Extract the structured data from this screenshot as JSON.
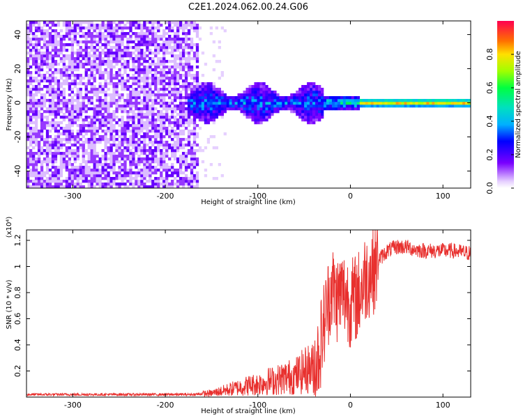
{
  "title": "C2E1.2024.062.00.24.G06",
  "colorbar": {
    "label": "Normalized spectral amplitude",
    "range": [
      0,
      1
    ],
    "ticks": [
      0.0,
      0.2,
      0.4,
      0.6,
      0.8
    ]
  },
  "colors": {
    "snr_line": "#e8302e",
    "low_amp": "#6a00f0",
    "mid_amp": "#00d0e0"
  },
  "chart_data": [
    {
      "type": "heatmap",
      "xlabel": "Height of straight line (km)",
      "ylabel": "Frequency (Hz)",
      "xlim": [
        -350,
        130
      ],
      "ylim": [
        -50,
        48
      ],
      "xticks": [
        -300,
        -200,
        -100,
        0,
        100
      ],
      "yticks": [
        -40,
        -20,
        0,
        20,
        40
      ],
      "regions": [
        {
          "x": [
            -350,
            -165
          ],
          "freq": [
            -50,
            48
          ],
          "amplitude": 0.1,
          "note": "broadband noise"
        },
        {
          "x": [
            -175,
            -30
          ],
          "freq": [
            -12,
            10
          ],
          "amplitude": 0.35
        },
        {
          "x": [
            -30,
            10
          ],
          "freq": [
            -5,
            5
          ],
          "amplitude": 0.55
        },
        {
          "x": [
            10,
            130
          ],
          "freq": [
            -2,
            2
          ],
          "amplitude": 0.9
        }
      ]
    },
    {
      "type": "line",
      "xlabel": "Height of straight line (km)",
      "ylabel": "SNR (10 * v/v)",
      "yscale_note": "(x10⁴)",
      "xlim": [
        -350,
        130
      ],
      "ylim": [
        0,
        1.28
      ],
      "xticks": [
        -300,
        -200,
        -100,
        0,
        100
      ],
      "yticks": [
        0.2,
        0.4,
        0.6,
        0.8,
        1.0,
        1.2
      ],
      "series": [
        {
          "x": [
            -350,
            -300,
            -250,
            -200,
            -170,
            -150,
            -130,
            -110,
            -100,
            -90,
            -80,
            -70,
            -60,
            -50,
            -45,
            -40,
            -35,
            -30,
            -25,
            -20,
            -15,
            -10,
            -5,
            0,
            5,
            10,
            15,
            20,
            25,
            30,
            40,
            50,
            60,
            70,
            80,
            90,
            100,
            110,
            120,
            130
          ],
          "values": [
            0.02,
            0.02,
            0.02,
            0.02,
            0.02,
            0.03,
            0.06,
            0.09,
            0.1,
            0.12,
            0.13,
            0.15,
            0.16,
            0.2,
            0.22,
            0.22,
            0.3,
            0.5,
            0.7,
            0.85,
            0.75,
            0.8,
            0.78,
            0.72,
            0.75,
            0.8,
            0.9,
            0.95,
            0.98,
            1.05,
            1.12,
            1.15,
            1.15,
            1.13,
            1.12,
            1.12,
            1.12,
            1.12,
            1.11,
            1.1
          ]
        }
      ]
    }
  ]
}
